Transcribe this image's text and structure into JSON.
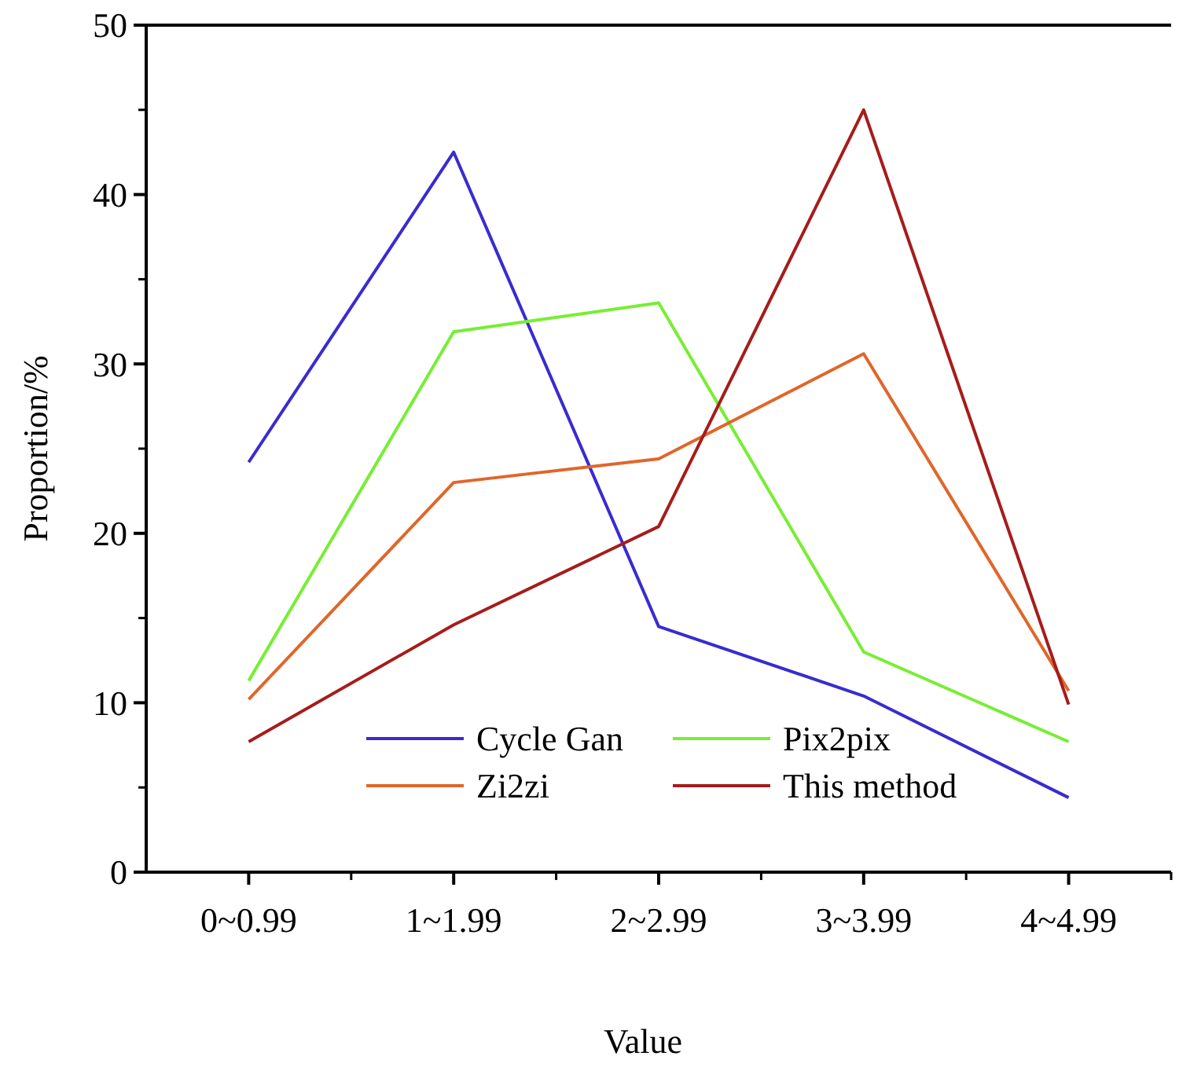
{
  "chart_data": {
    "type": "line",
    "xlabel": "Value",
    "ylabel": "Proportion/%",
    "categories": [
      "0~0.99",
      "1~1.99",
      "2~2.99",
      "3~3.99",
      "4~4.99"
    ],
    "ylim": [
      0,
      50
    ],
    "yticks": [
      0,
      10,
      20,
      30,
      40,
      50
    ],
    "grid": false,
    "legend": "bottom",
    "marker": "none",
    "line_style": "solid",
    "series": [
      {
        "name": "Cycle Gan",
        "color": "#3a2bd0",
        "values": [
          24.2,
          42.5,
          14.5,
          10.4,
          4.4
        ]
      },
      {
        "name": "Pix2pix",
        "color": "#77ee33",
        "values": [
          11.3,
          31.9,
          33.6,
          13.0,
          7.7
        ]
      },
      {
        "name": "Zi2zi",
        "color": "#e0662a",
        "values": [
          10.2,
          23.0,
          24.4,
          30.6,
          10.7
        ]
      },
      {
        "name": "This method",
        "color": "#a61c1c",
        "values": [
          7.7,
          14.6,
          20.4,
          45.0,
          9.9
        ]
      }
    ]
  }
}
